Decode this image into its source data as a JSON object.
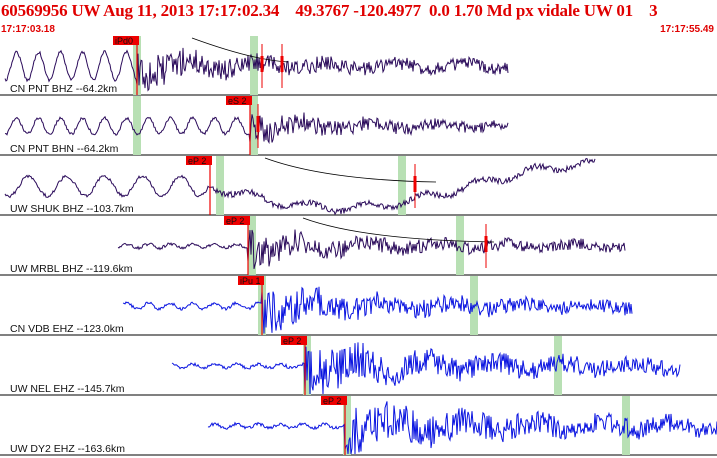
{
  "header": {
    "title": "60569956 UW Aug 11, 2013 17:17:02.34    49.3767 -120.4977  0.0 1.70 Md px vidale UW 01    3",
    "start_time": "17:17:03.18",
    "end_time": "17:17:55.49"
  },
  "colors": {
    "short_period_trace": "#2a0a5a",
    "broadband_trace": "#0a14e0",
    "pick_flag": "#ee0000",
    "window_band": "#b8e0b4"
  },
  "traces": [
    {
      "label": "CN PNT BHZ --64.2km",
      "pick": "iPd0",
      "color": "short"
    },
    {
      "label": "CN PNT BHN --64.2km",
      "pick": "eS 2",
      "color": "short"
    },
    {
      "label": "UW SHUK BHZ --103.7km",
      "pick": "eP 2",
      "color": "short"
    },
    {
      "label": "UW MRBL BHZ --119.6km",
      "pick": "eP 2",
      "color": "short"
    },
    {
      "label": "CN VDB EHZ --123.0km",
      "pick": "iPu 1",
      "color": "broad"
    },
    {
      "label": "UW NEL EHZ --145.7km",
      "pick": "eP 2",
      "color": "broad"
    },
    {
      "label": "UW DY2 EHZ --163.6km",
      "pick": "eP 2",
      "color": "broad"
    }
  ]
}
